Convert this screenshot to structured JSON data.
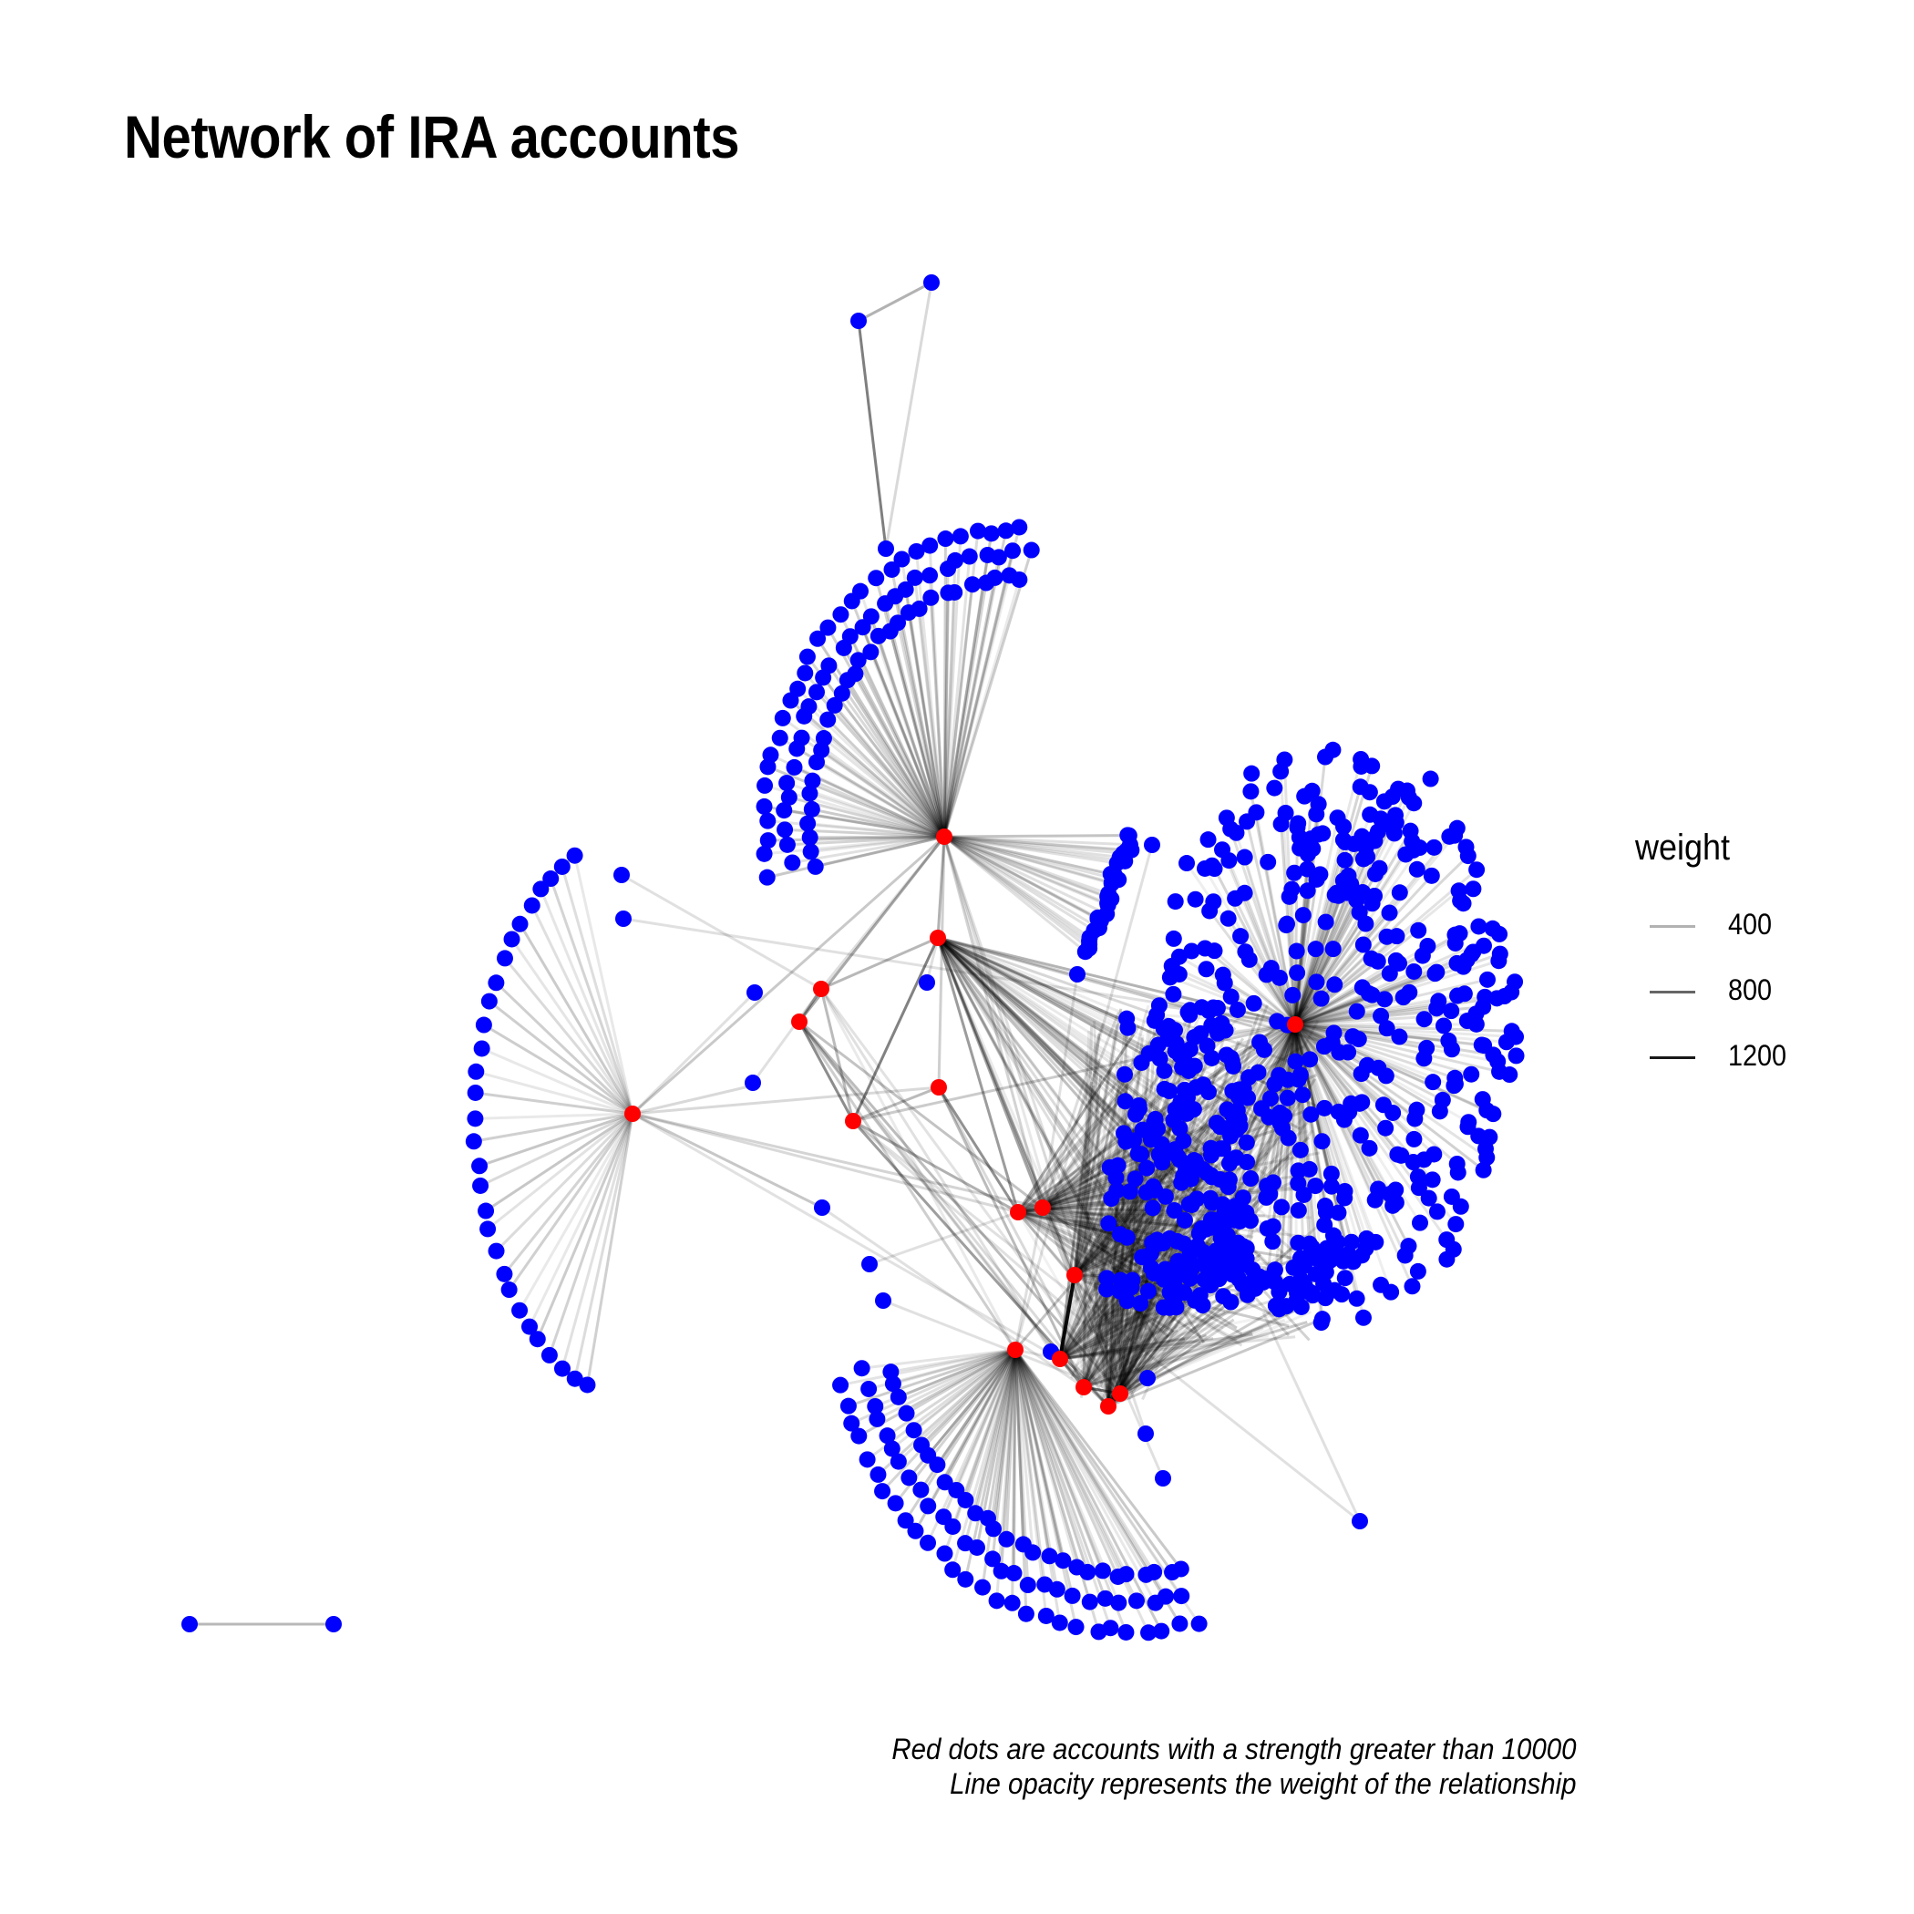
{
  "title": "Network of IRA accounts",
  "legend": {
    "title": "weight",
    "items": [
      {
        "label": "400",
        "opacity": 0.3
      },
      {
        "label": "800",
        "opacity": 0.6
      },
      {
        "label": "1200",
        "opacity": 0.9
      }
    ]
  },
  "caption": {
    "line1": "Red dots are accounts with a strength greater than 10000",
    "line2": "Line opacity represents the weight of the relationship"
  },
  "colors": {
    "high_strength_node": "#ff0000",
    "node": "#0000ff",
    "edge": "#000000",
    "background": "#ffffff"
  }
}
